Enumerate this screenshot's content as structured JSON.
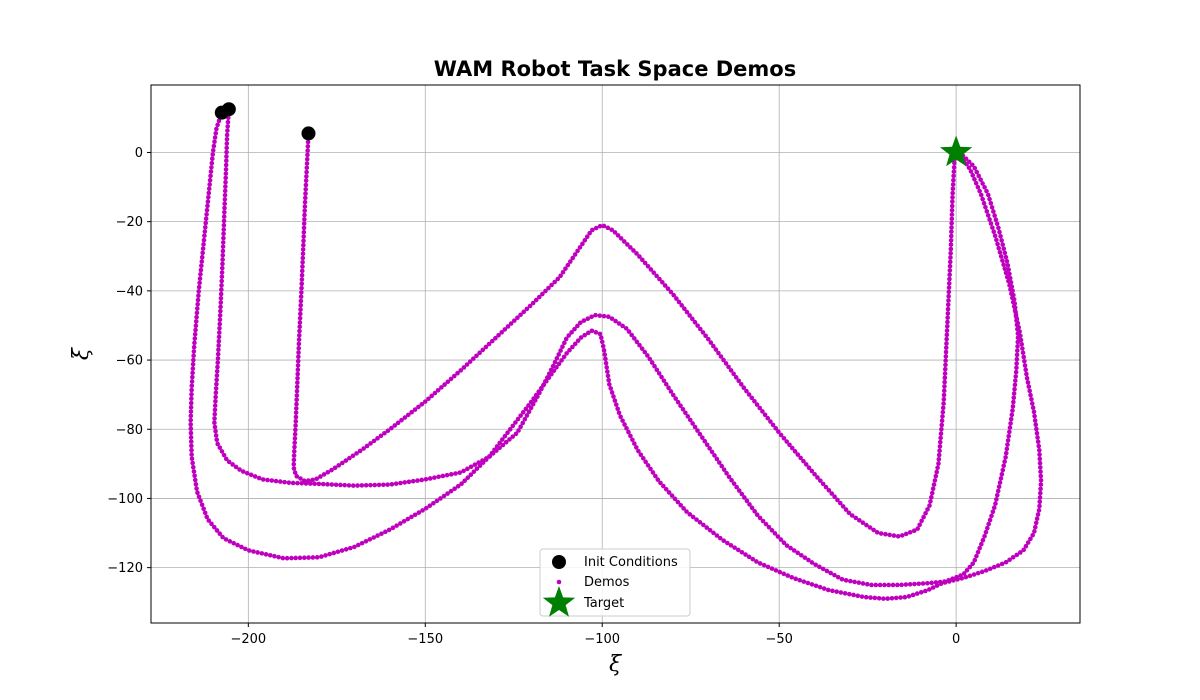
{
  "chart_data": {
    "type": "scatter",
    "title": "WAM Robot Task Space Demos",
    "xlabel": "ξ",
    "ylabel": "ξ̇",
    "xlim": [
      -227.5,
      35
    ],
    "ylim": [
      -136,
      19.5
    ],
    "xticks": [
      -200,
      -150,
      -100,
      -50,
      0
    ],
    "yticks": [
      0,
      -20,
      -40,
      -60,
      -80,
      -100,
      -120
    ],
    "grid": true,
    "legend": {
      "placement": "lower-center",
      "entries": [
        "Init Conditions",
        "Demos",
        "Target"
      ]
    },
    "colors": {
      "init": "#000000",
      "demos": "#bf00bf",
      "target": "#008000"
    },
    "init_conditions": [
      {
        "x": -207.5,
        "y": 11.5
      },
      {
        "x": -205.5,
        "y": 12.5
      },
      {
        "x": -183,
        "y": 5.5
      }
    ],
    "target": {
      "x": 0,
      "y": 0
    },
    "demos": [
      {
        "points": [
          [
            -183,
            5.5
          ],
          [
            -183.5,
            -5
          ],
          [
            -184,
            -15
          ],
          [
            -184.5,
            -28
          ],
          [
            -185,
            -40
          ],
          [
            -185.7,
            -55
          ],
          [
            -186.2,
            -68
          ],
          [
            -186.6,
            -78
          ],
          [
            -187,
            -86
          ],
          [
            -187.2,
            -91
          ],
          [
            -186.5,
            -93.5
          ],
          [
            -184,
            -95
          ],
          [
            -181,
            -94.5
          ],
          [
            -176,
            -91.5
          ],
          [
            -168,
            -86
          ],
          [
            -160,
            -80
          ],
          [
            -150,
            -72
          ],
          [
            -140,
            -63
          ],
          [
            -130,
            -53.5
          ],
          [
            -120,
            -44
          ],
          [
            -112,
            -36
          ],
          [
            -106,
            -27
          ],
          [
            -103,
            -22.5
          ],
          [
            -100,
            -21
          ],
          [
            -97,
            -22.5
          ],
          [
            -90,
            -29.5
          ],
          [
            -80,
            -41
          ],
          [
            -70,
            -54
          ],
          [
            -60,
            -68
          ],
          [
            -50,
            -81
          ],
          [
            -40,
            -93
          ],
          [
            -30,
            -104.5
          ],
          [
            -22,
            -110
          ],
          [
            -16,
            -111
          ],
          [
            -11,
            -109
          ],
          [
            -7.5,
            -102
          ],
          [
            -5,
            -90
          ],
          [
            -3.5,
            -72
          ],
          [
            -2.5,
            -50
          ],
          [
            -1.5,
            -28
          ],
          [
            -1,
            -12
          ],
          [
            -0.5,
            -3
          ],
          [
            0,
            0
          ]
        ]
      },
      {
        "points": [
          [
            -205.5,
            12.5
          ],
          [
            -206,
            5
          ],
          [
            -206.3,
            -5
          ],
          [
            -206.8,
            -18
          ],
          [
            -207.3,
            -32
          ],
          [
            -207.9,
            -46
          ],
          [
            -208.6,
            -60
          ],
          [
            -209.2,
            -70
          ],
          [
            -209.6,
            -78
          ],
          [
            -208.8,
            -84
          ],
          [
            -206,
            -89
          ],
          [
            -202,
            -92
          ],
          [
            -196,
            -94.5
          ],
          [
            -188,
            -95.5
          ],
          [
            -180,
            -95.8
          ],
          [
            -170,
            -96.3
          ],
          [
            -160,
            -96
          ],
          [
            -150,
            -94.5
          ],
          [
            -140,
            -92.5
          ],
          [
            -132,
            -88
          ],
          [
            -124,
            -81
          ],
          [
            -118,
            -70
          ],
          [
            -114,
            -62
          ],
          [
            -110,
            -53.5
          ],
          [
            -106,
            -49
          ],
          [
            -102,
            -47
          ],
          [
            -98,
            -47.5
          ],
          [
            -93,
            -51
          ],
          [
            -87,
            -59
          ],
          [
            -80,
            -70
          ],
          [
            -72,
            -82
          ],
          [
            -64,
            -94
          ],
          [
            -56,
            -105
          ],
          [
            -48,
            -113.5
          ],
          [
            -40,
            -119
          ],
          [
            -32,
            -123.5
          ],
          [
            -24,
            -125
          ],
          [
            -16,
            -125
          ],
          [
            -8,
            -124.5
          ],
          [
            -3,
            -124
          ],
          [
            2,
            -122
          ],
          [
            5,
            -118.5
          ],
          [
            8,
            -111
          ],
          [
            11,
            -102
          ],
          [
            14,
            -88
          ],
          [
            16,
            -74
          ],
          [
            17,
            -63
          ],
          [
            17.5,
            -53
          ],
          [
            16.5,
            -43
          ],
          [
            14.5,
            -32
          ],
          [
            12,
            -22
          ],
          [
            9,
            -12
          ],
          [
            5,
            -4
          ],
          [
            2,
            -1
          ],
          [
            0,
            0
          ]
        ]
      },
      {
        "points": [
          [
            -207.5,
            11.5
          ],
          [
            -209,
            7
          ],
          [
            -210,
            0
          ],
          [
            -211,
            -10
          ],
          [
            -212.5,
            -25
          ],
          [
            -214,
            -40
          ],
          [
            -215.3,
            -56
          ],
          [
            -216,
            -68
          ],
          [
            -216.3,
            -78
          ],
          [
            -216,
            -88
          ],
          [
            -214.5,
            -98
          ],
          [
            -211.5,
            -106
          ],
          [
            -207,
            -111.5
          ],
          [
            -200,
            -115
          ],
          [
            -190,
            -117.3
          ],
          [
            -180,
            -117
          ],
          [
            -170,
            -114
          ],
          [
            -160,
            -109
          ],
          [
            -150,
            -103
          ],
          [
            -140,
            -96
          ],
          [
            -132,
            -88
          ],
          [
            -126,
            -80
          ],
          [
            -120,
            -72
          ],
          [
            -115,
            -65
          ],
          [
            -110,
            -58
          ],
          [
            -106,
            -53.5
          ],
          [
            -103,
            -51.5
          ],
          [
            -100.5,
            -52.5
          ],
          [
            -99.5,
            -57
          ],
          [
            -98,
            -67
          ],
          [
            -95,
            -76
          ],
          [
            -90,
            -86
          ],
          [
            -84,
            -95
          ],
          [
            -76,
            -104
          ],
          [
            -66,
            -112
          ],
          [
            -56,
            -118.5
          ],
          [
            -46,
            -123
          ],
          [
            -36,
            -126.5
          ],
          [
            -26,
            -128.5
          ],
          [
            -20,
            -129
          ],
          [
            -14,
            -128.5
          ],
          [
            -8,
            -126.5
          ],
          [
            -4,
            -124.5
          ],
          [
            2,
            -123
          ],
          [
            8,
            -121
          ],
          [
            14,
            -118.5
          ],
          [
            19,
            -115
          ],
          [
            22,
            -110
          ],
          [
            23.5,
            -103
          ],
          [
            24,
            -95
          ],
          [
            23.5,
            -86
          ],
          [
            22,
            -75
          ],
          [
            20,
            -65
          ],
          [
            18,
            -52
          ],
          [
            15,
            -38
          ],
          [
            11,
            -24
          ],
          [
            7,
            -12
          ],
          [
            4,
            -5
          ],
          [
            1.5,
            -1
          ],
          [
            0,
            0
          ]
        ]
      }
    ]
  }
}
